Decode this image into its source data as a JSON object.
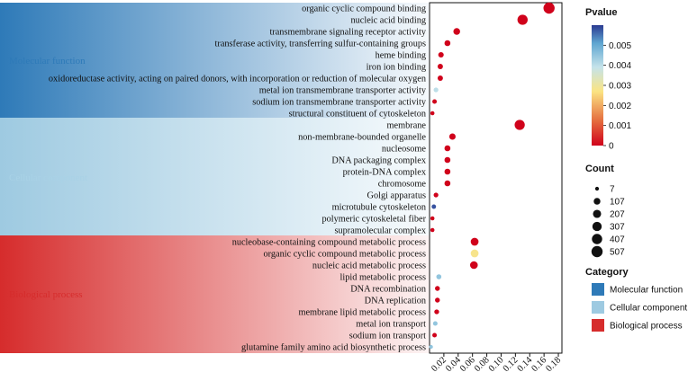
{
  "chart_data": {
    "type": "scatter",
    "xlim": [
      0,
      0.185
    ],
    "x_ticks": [
      0.02,
      0.04,
      0.06,
      0.08,
      0.1,
      0.12,
      0.14,
      0.16,
      0.18
    ],
    "x_tick_labels": [
      "0.02",
      "0.04",
      "0.06",
      "0.08",
      "0.10",
      "0.12",
      "0.14",
      "0.16",
      "0.18"
    ],
    "grid": false,
    "categories": [
      {
        "name": "Molecular function",
        "color": "#2e7ab8"
      },
      {
        "name": "Cellular component",
        "color": "#9ecae1"
      },
      {
        "name": "Biological process",
        "color": "#d62c2c"
      }
    ],
    "terms": [
      {
        "label": "organic cyclic compound binding",
        "category": "Molecular function",
        "x": 0.167,
        "count": 507,
        "pvalue": 0.0
      },
      {
        "label": "nucleic acid binding",
        "category": "Molecular function",
        "x": 0.13,
        "count": 400,
        "pvalue": 0.0
      },
      {
        "label": "transmembrane signaling receptor activity",
        "category": "Molecular function",
        "x": 0.038,
        "count": 110,
        "pvalue": 0.0
      },
      {
        "label": "transferase activity, transferring sulfur-containing groups",
        "category": "Molecular function",
        "x": 0.025,
        "count": 70,
        "pvalue": 0.0
      },
      {
        "label": "heme binding",
        "category": "Molecular function",
        "x": 0.016,
        "count": 50,
        "pvalue": 0.0
      },
      {
        "label": "iron ion binding",
        "category": "Molecular function",
        "x": 0.015,
        "count": 45,
        "pvalue": 0.0
      },
      {
        "label": "oxidoreductase activity, acting on paired donors, with incorporation or reduction of molecular oxygen",
        "category": "Molecular function",
        "x": 0.015,
        "count": 45,
        "pvalue": 0.0
      },
      {
        "label": "metal ion transmembrane transporter activity",
        "category": "Molecular function",
        "x": 0.009,
        "count": 25,
        "pvalue": 0.004
      },
      {
        "label": "sodium ion transmembrane transporter activity",
        "category": "Molecular function",
        "x": 0.007,
        "count": 20,
        "pvalue": 0.0
      },
      {
        "label": "structural constituent of cytoskeleton",
        "category": "Molecular function",
        "x": 0.004,
        "count": 12,
        "pvalue": 0.0
      },
      {
        "label": "membrane",
        "category": "Cellular component",
        "x": 0.126,
        "count": 390,
        "pvalue": 0.0
      },
      {
        "label": "non-membrane-bounded organelle",
        "category": "Cellular component",
        "x": 0.032,
        "count": 90,
        "pvalue": 0.0
      },
      {
        "label": "nucleosome",
        "category": "Cellular component",
        "x": 0.025,
        "count": 70,
        "pvalue": 0.0
      },
      {
        "label": "DNA packaging complex",
        "category": "Cellular component",
        "x": 0.025,
        "count": 70,
        "pvalue": 0.0
      },
      {
        "label": "protein-DNA complex",
        "category": "Cellular component",
        "x": 0.025,
        "count": 70,
        "pvalue": 0.0
      },
      {
        "label": "chromosome",
        "category": "Cellular component",
        "x": 0.025,
        "count": 70,
        "pvalue": 0.0
      },
      {
        "label": "Golgi apparatus",
        "category": "Cellular component",
        "x": 0.009,
        "count": 25,
        "pvalue": 0.0
      },
      {
        "label": "microtubule cytoskeleton",
        "category": "Cellular component",
        "x": 0.006,
        "count": 18,
        "pvalue": 0.0058
      },
      {
        "label": "polymeric cytoskeletal fiber",
        "category": "Cellular component",
        "x": 0.004,
        "count": 12,
        "pvalue": 0.0
      },
      {
        "label": "supramolecular complex",
        "category": "Cellular component",
        "x": 0.004,
        "count": 12,
        "pvalue": 0.0
      },
      {
        "label": "nucleobase-containing compound metabolic process",
        "category": "Biological process",
        "x": 0.063,
        "count": 180,
        "pvalue": 0.0
      },
      {
        "label": "organic cyclic compound metabolic process",
        "category": "Biological process",
        "x": 0.063,
        "count": 180,
        "pvalue": 0.0028
      },
      {
        "label": "nucleic acid metabolic process",
        "category": "Biological process",
        "x": 0.062,
        "count": 175,
        "pvalue": 0.0
      },
      {
        "label": "lipid metabolic process",
        "category": "Biological process",
        "x": 0.013,
        "count": 35,
        "pvalue": 0.0045
      },
      {
        "label": "DNA recombination",
        "category": "Biological process",
        "x": 0.011,
        "count": 30,
        "pvalue": 0.0
      },
      {
        "label": "DNA replication",
        "category": "Biological process",
        "x": 0.011,
        "count": 30,
        "pvalue": 0.0
      },
      {
        "label": "membrane lipid metabolic process",
        "category": "Biological process",
        "x": 0.01,
        "count": 28,
        "pvalue": 0.0
      },
      {
        "label": "metal ion transport",
        "category": "Biological process",
        "x": 0.008,
        "count": 22,
        "pvalue": 0.0045
      },
      {
        "label": "sodium ion transport",
        "category": "Biological process",
        "x": 0.007,
        "count": 20,
        "pvalue": 0.0
      },
      {
        "label": "glutamine family amino acid biosynthetic process",
        "category": "Biological process",
        "x": 0.002,
        "count": 8,
        "pvalue": 0.0045
      }
    ],
    "legend": {
      "pvalue_title": "Pvalue",
      "pvalue_ticks": [
        0.005,
        0.004,
        0.003,
        0.002,
        0.001,
        0
      ],
      "pvalue_tick_labels": [
        "0.005",
        "0.004",
        "0.003",
        "0.002",
        "0.001",
        "0"
      ],
      "pvalue_range": [
        0,
        0.006
      ],
      "pvalue_colors": [
        "#d0021b",
        "#e46a3d",
        "#fbe483",
        "#c5e3ea",
        "#5fa6d1",
        "#2b3a91"
      ],
      "count_title": "Count",
      "count_values": [
        7,
        107,
        207,
        307,
        407,
        507
      ],
      "count_labels": [
        "7",
        "107",
        "207",
        "307",
        "407",
        "507"
      ],
      "category_title": "Category",
      "category_labels": [
        "Molecular function",
        "Cellular component",
        "Biological process"
      ],
      "category_colors": [
        "#2e7ab8",
        "#9ecae1",
        "#d62c2c"
      ]
    }
  }
}
